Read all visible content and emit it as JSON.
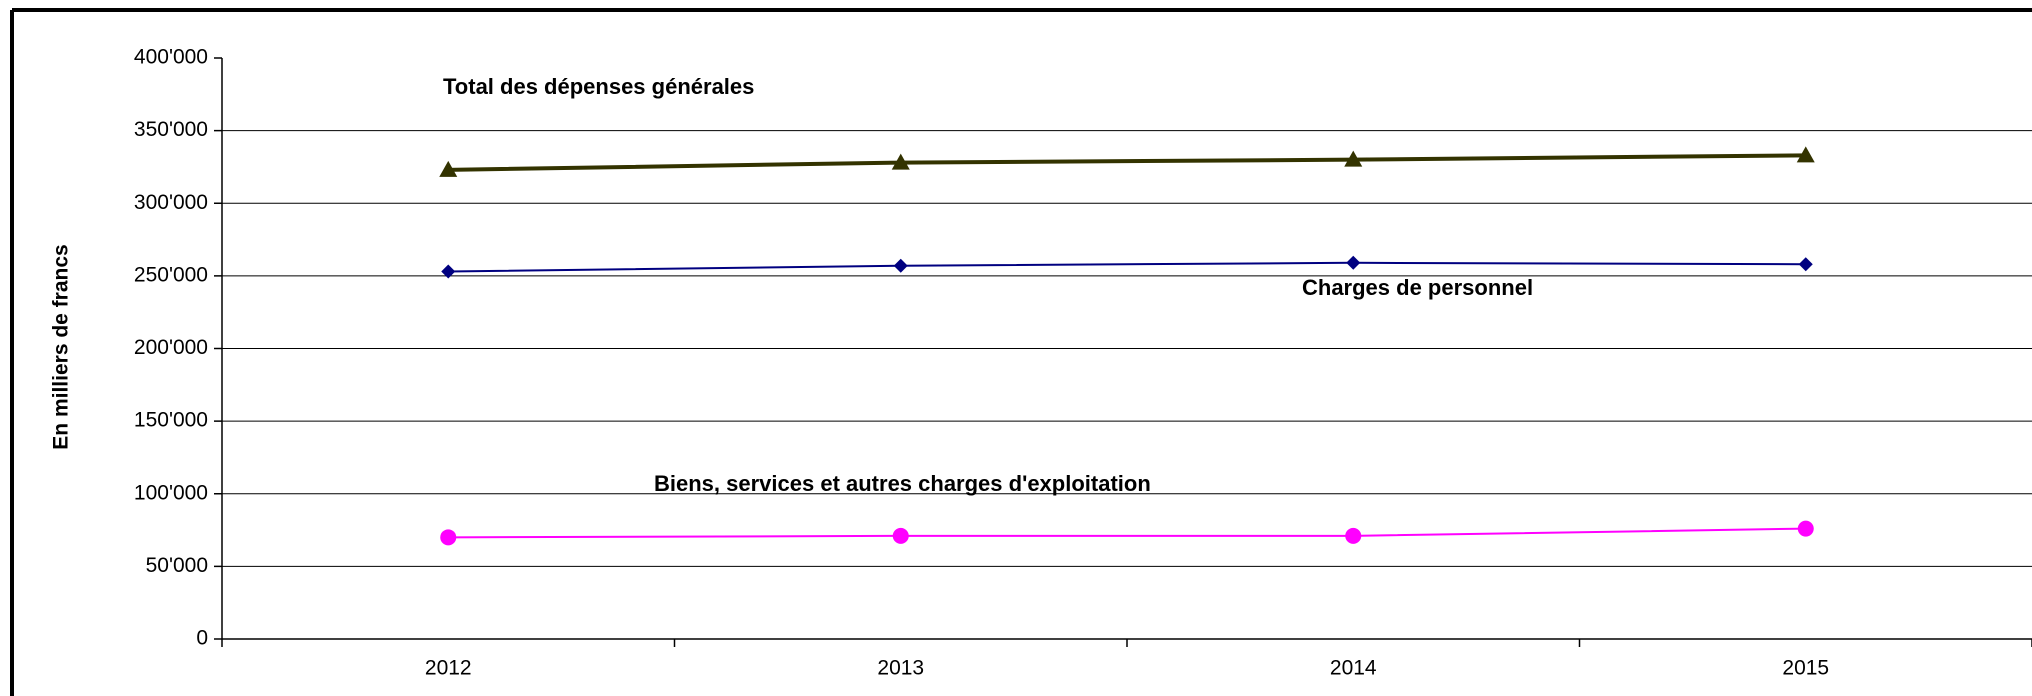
{
  "chart_data": {
    "type": "line",
    "y_label": "En milliers de francs",
    "categories": [
      "2012",
      "2013",
      "2014",
      "2015"
    ],
    "series": [
      {
        "name": "Total des dépenses générales",
        "color": "#333300",
        "marker": "triangle",
        "values": [
          323000,
          328000,
          330000,
          333000
        ]
      },
      {
        "name": "Charges de personnel",
        "color": "#000080",
        "marker": "diamond",
        "values": [
          253000,
          257000,
          259000,
          258000
        ]
      },
      {
        "name": "Biens, services et autres charges d'exploitation",
        "color": "#ff00ff",
        "marker": "circle",
        "values": [
          70000,
          71000,
          71000,
          76000
        ]
      }
    ],
    "ylim": [
      0,
      400000
    ],
    "yticks": [
      0,
      {
        "value": 50000,
        "label": "50'000"
      },
      {
        "value": 100000,
        "label": "100'000"
      },
      {
        "value": 150000,
        "label": "150'000"
      },
      {
        "value": 200000,
        "label": "200'000"
      },
      {
        "value": 250000,
        "label": "250'000"
      },
      {
        "value": 300000,
        "label": "300'000"
      },
      {
        "value": 350000,
        "label": "350'000"
      },
      {
        "value": 400000,
        "label": "400'000"
      }
    ],
    "grid": true
  }
}
